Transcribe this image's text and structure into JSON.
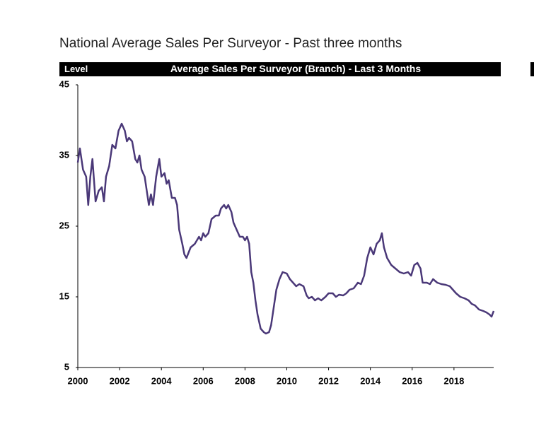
{
  "chart_data": {
    "type": "line",
    "title": "National Average Sales Per Surveyor - Past three months",
    "header_left": "Level",
    "header_title": "Average Sales Per Surveyor (Branch) - Last 3 Months",
    "xlim": [
      2000,
      2019.9
    ],
    "xticks": [
      2000,
      2002,
      2004,
      2006,
      2008,
      2010,
      2012,
      2014,
      2016,
      2018
    ],
    "ylim": [
      5,
      45
    ],
    "yticks": [
      5,
      15,
      25,
      35,
      45
    ],
    "grid": false,
    "series": [
      {
        "name": "Average Sales Per Surveyor",
        "color": "#4a3878",
        "x": [
          2000.0,
          2000.1,
          2000.25,
          2000.4,
          2000.5,
          2000.6,
          2000.7,
          2000.85,
          2001.0,
          2001.15,
          2001.25,
          2001.35,
          2001.5,
          2001.65,
          2001.8,
          2001.95,
          2002.1,
          2002.25,
          2002.35,
          2002.45,
          2002.6,
          2002.75,
          2002.85,
          2002.95,
          2003.05,
          2003.2,
          2003.3,
          2003.4,
          2003.5,
          2003.6,
          2003.75,
          2003.9,
          2004.0,
          2004.15,
          2004.25,
          2004.35,
          2004.5,
          2004.65,
          2004.75,
          2004.85,
          2005.0,
          2005.1,
          2005.2,
          2005.4,
          2005.6,
          2005.8,
          2005.9,
          2006.0,
          2006.1,
          2006.25,
          2006.4,
          2006.6,
          2006.75,
          2006.85,
          2007.0,
          2007.1,
          2007.2,
          2007.35,
          2007.45,
          2007.6,
          2007.75,
          2007.9,
          2008.0,
          2008.1,
          2008.2,
          2008.3,
          2008.4,
          2008.5,
          2008.6,
          2008.75,
          2008.9,
          2009.0,
          2009.15,
          2009.25,
          2009.35,
          2009.5,
          2009.65,
          2009.8,
          2010.0,
          2010.15,
          2010.3,
          2010.45,
          2010.6,
          2010.8,
          2010.95,
          2011.05,
          2011.2,
          2011.35,
          2011.5,
          2011.65,
          2011.85,
          2012.0,
          2012.2,
          2012.35,
          2012.5,
          2012.7,
          2012.85,
          2013.0,
          2013.2,
          2013.4,
          2013.55,
          2013.7,
          2013.85,
          2014.0,
          2014.15,
          2014.3,
          2014.45,
          2014.55,
          2014.65,
          2014.8,
          2015.0,
          2015.2,
          2015.4,
          2015.6,
          2015.8,
          2015.95,
          2016.1,
          2016.25,
          2016.4,
          2016.5,
          2016.7,
          2016.85,
          2017.0,
          2017.2,
          2017.4,
          2017.6,
          2017.8,
          2017.95,
          2018.1,
          2018.3,
          2018.5,
          2018.7,
          2018.85,
          2019.0,
          2019.2,
          2019.4,
          2019.55,
          2019.7,
          2019.8,
          2019.9
        ],
        "values": [
          34,
          36,
          33,
          32,
          28,
          32,
          34.5,
          28.5,
          30,
          30.5,
          28.5,
          32,
          33.5,
          36.5,
          36,
          38.5,
          39.5,
          38.5,
          37,
          37.5,
          37,
          34.5,
          34,
          35,
          33,
          32,
          30,
          28,
          29.5,
          28,
          32,
          34.5,
          32,
          32.5,
          31,
          31.5,
          29,
          29,
          28,
          24.5,
          22.5,
          21,
          20.5,
          22,
          22.5,
          23.5,
          23,
          24,
          23.5,
          24,
          26,
          26.5,
          26.5,
          27.5,
          28,
          27.5,
          28,
          27,
          25.5,
          24.5,
          23.5,
          23.5,
          23,
          23.5,
          22.5,
          18.5,
          17,
          14.5,
          12.5,
          10.5,
          10,
          9.8,
          10,
          11,
          13,
          16,
          17.5,
          18.5,
          18.3,
          17.5,
          17,
          16.5,
          16.8,
          16.5,
          15.2,
          14.8,
          15,
          14.5,
          14.8,
          14.5,
          15,
          15.5,
          15.5,
          15,
          15.3,
          15.2,
          15.5,
          16,
          16.2,
          17,
          16.8,
          18,
          20.5,
          22,
          21,
          22.5,
          23,
          24,
          22,
          20.5,
          19.5,
          19,
          18.5,
          18.3,
          18.5,
          18,
          19.5,
          19.8,
          19,
          17,
          17,
          16.8,
          17.5,
          17,
          16.8,
          16.7,
          16.5,
          16,
          15.5,
          15,
          14.8,
          14.5,
          14,
          13.8,
          13.2,
          13,
          12.8,
          12.5,
          12.2,
          13
        ]
      }
    ]
  }
}
